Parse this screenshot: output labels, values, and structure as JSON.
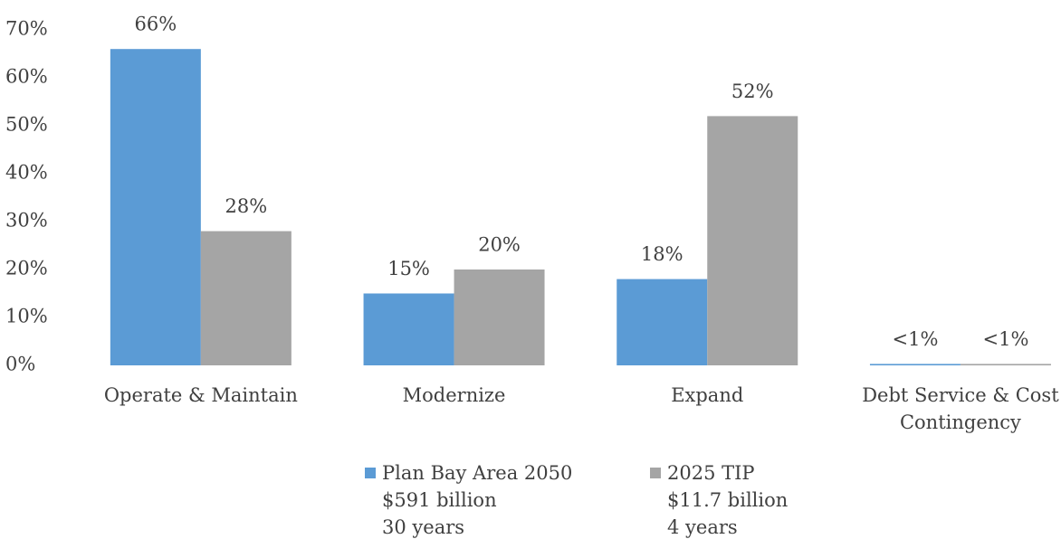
{
  "chart_data": {
    "type": "bar",
    "categories": [
      "Operate & Maintain",
      "Modernize",
      "Expand",
      "Debt Service & Cost Contingency"
    ],
    "series": [
      {
        "name": "Plan Bay Area 2050",
        "details": [
          "$591 billion",
          "30 years"
        ],
        "color": "#5b9bd5",
        "values": [
          66,
          15,
          18,
          0.3
        ],
        "value_labels": [
          "66%",
          "15%",
          "18%",
          "<1%"
        ]
      },
      {
        "name": "2025 TIP",
        "details": [
          "$11.7 billion",
          "4 years"
        ],
        "color": "#a5a5a5",
        "values": [
          28,
          20,
          52,
          0.3
        ],
        "value_labels": [
          "28%",
          "20%",
          "52%",
          "<1%"
        ]
      }
    ],
    "ylim": [
      0,
      70
    ],
    "yticks": [
      {
        "value": 0,
        "label": "0%"
      },
      {
        "value": 10,
        "label": "10%"
      },
      {
        "value": 20,
        "label": "20%"
      },
      {
        "value": 30,
        "label": "30%"
      },
      {
        "value": 40,
        "label": "40%"
      },
      {
        "value": 50,
        "label": "50%"
      },
      {
        "value": 60,
        "label": "60%"
      },
      {
        "value": 70,
        "label": "70%"
      }
    ],
    "grid": false,
    "legend": "bottom"
  }
}
